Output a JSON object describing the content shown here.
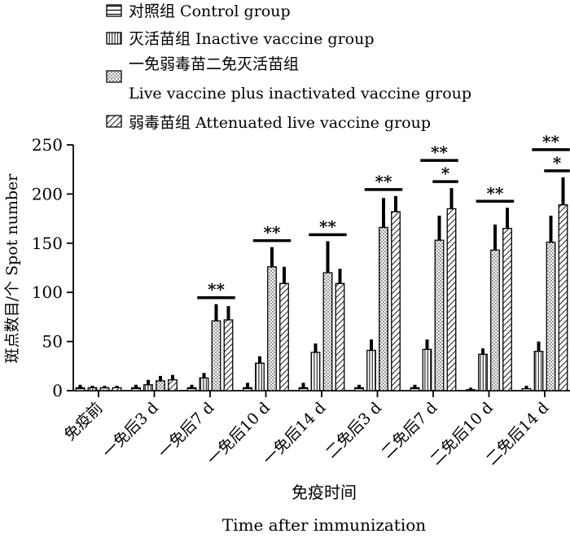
{
  "chart_data": {
    "type": "bar",
    "title": "",
    "xlabel_cn": "免疫时间",
    "xlabel_en": "Time after immunization",
    "ylabel": "斑点数目/个 Spot number",
    "ylim": [
      0,
      250
    ],
    "yticks": [
      0,
      50,
      100,
      150,
      200,
      250
    ],
    "grid": false,
    "legend_position": "top",
    "categories": [
      "免疫前",
      "一免后3 d",
      "一免后7 d",
      "一免后10 d",
      "一免后14 d",
      "二免后3 d",
      "二免后7 d",
      "二免后10 d",
      "二免后14 d"
    ],
    "series": [
      {
        "name": "对照组 Control group",
        "pattern": "horizontal",
        "values": [
          3,
          3,
          3,
          3,
          3,
          3,
          3,
          1,
          2
        ],
        "errors": [
          3,
          3,
          3,
          5,
          5,
          3,
          3,
          2,
          3
        ]
      },
      {
        "name": "灭活苗组 Inactive vaccine group",
        "pattern": "vertical",
        "values": [
          3,
          6,
          13,
          28,
          39,
          41,
          42,
          37,
          40
        ],
        "errors": [
          2,
          5,
          5,
          7,
          9,
          11,
          10,
          6,
          10
        ]
      },
      {
        "name_line1": "一免弱毒苗二免灭活苗组",
        "name_line2": "Live vaccine plus inactivated vaccine group",
        "pattern": "dots",
        "values": [
          3,
          10,
          71,
          126,
          120,
          166,
          153,
          143,
          151
        ],
        "errors": [
          2,
          5,
          17,
          20,
          32,
          30,
          25,
          26,
          27
        ]
      },
      {
        "name": "弱毒苗组 Attenuated live vaccine group",
        "pattern": "diagonal",
        "values": [
          3,
          11,
          72,
          109,
          109,
          182,
          185,
          165,
          189
        ],
        "errors": [
          2,
          5,
          14,
          17,
          15,
          16,
          21,
          21,
          28
        ]
      }
    ],
    "annotations": [
      {
        "category_index": 2,
        "from_series": 1,
        "to_series": 3,
        "text": "**",
        "level": 1
      },
      {
        "category_index": 3,
        "from_series": 1,
        "to_series": 3,
        "text": "**",
        "level": 1
      },
      {
        "category_index": 4,
        "from_series": 1,
        "to_series": 3,
        "text": "**",
        "level": 1
      },
      {
        "category_index": 5,
        "from_series": 1,
        "to_series": 3,
        "text": "**",
        "level": 1
      },
      {
        "category_index": 6,
        "from_series": 1,
        "to_series": 3,
        "text": "**",
        "level": 2
      },
      {
        "category_index": 6,
        "from_series": 2,
        "to_series": 3,
        "text": "*",
        "level": 1
      },
      {
        "category_index": 7,
        "from_series": 1,
        "to_series": 3,
        "text": "**",
        "level": 1
      },
      {
        "category_index": 8,
        "from_series": 1,
        "to_series": 3,
        "text": "**",
        "level": 2
      },
      {
        "category_index": 8,
        "from_series": 2,
        "to_series": 3,
        "text": "*",
        "level": 1
      }
    ]
  }
}
